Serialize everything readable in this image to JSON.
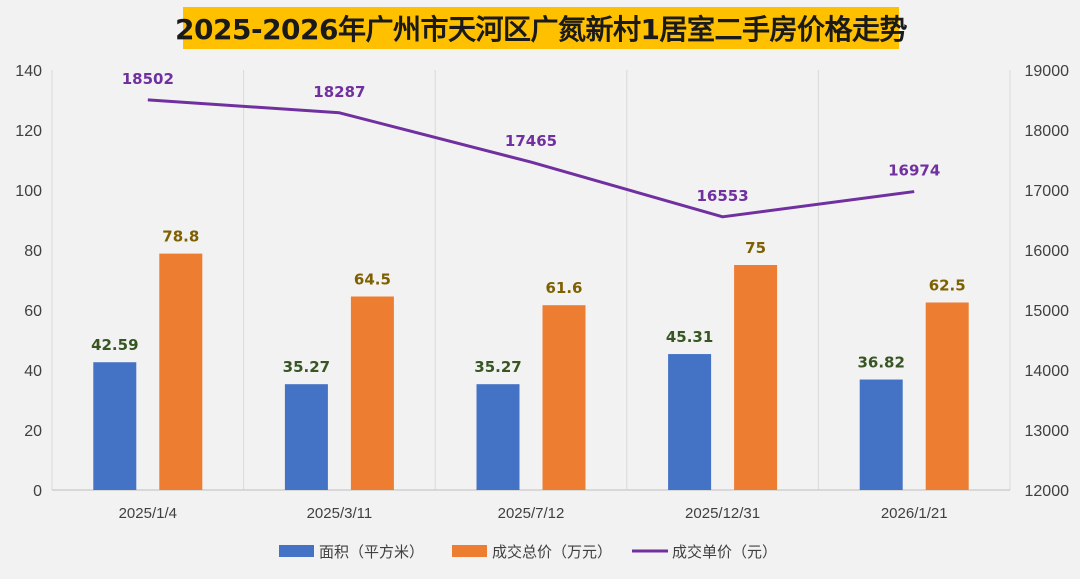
{
  "chart_data": {
    "type": "bar",
    "title": "2025-2026年广州市天河区广氮新村1居室二手房价格走势",
    "categories": [
      "2025/1/4",
      "2025/3/11",
      "2025/7/12",
      "2025/12/31",
      "2026/1/21"
    ],
    "series": [
      {
        "name": "面积（平方米）",
        "type": "bar",
        "axis": "left",
        "values": [
          42.59,
          35.27,
          35.27,
          45.31,
          36.82
        ],
        "labels": [
          "42.59",
          "35.27",
          "35.27",
          "45.31",
          "36.82"
        ],
        "color": "#4472c4"
      },
      {
        "name": "成交总价（万元）",
        "type": "bar",
        "axis": "left",
        "values": [
          78.8,
          64.5,
          61.6,
          75,
          62.5
        ],
        "labels": [
          "78.8",
          "64.5",
          "61.6",
          "75",
          "62.5"
        ],
        "color": "#ed7d31"
      },
      {
        "name": "成交单价（元）",
        "type": "line",
        "axis": "right",
        "values": [
          18502,
          18287,
          17465,
          16553,
          16974
        ],
        "labels": [
          "18502",
          "18287",
          "17465",
          "16553",
          "16974"
        ],
        "color": "#7030a0"
      }
    ],
    "y_left": {
      "min": 0,
      "max": 140,
      "ticks": [
        "0",
        "20",
        "40",
        "60",
        "80",
        "100",
        "120",
        "140"
      ]
    },
    "y_right": {
      "min": 12000,
      "max": 19000,
      "ticks": [
        "12000",
        "13000",
        "14000",
        "15000",
        "16000",
        "17000",
        "18000",
        "19000"
      ]
    },
    "grid": "vertical",
    "legend": "bottom"
  }
}
